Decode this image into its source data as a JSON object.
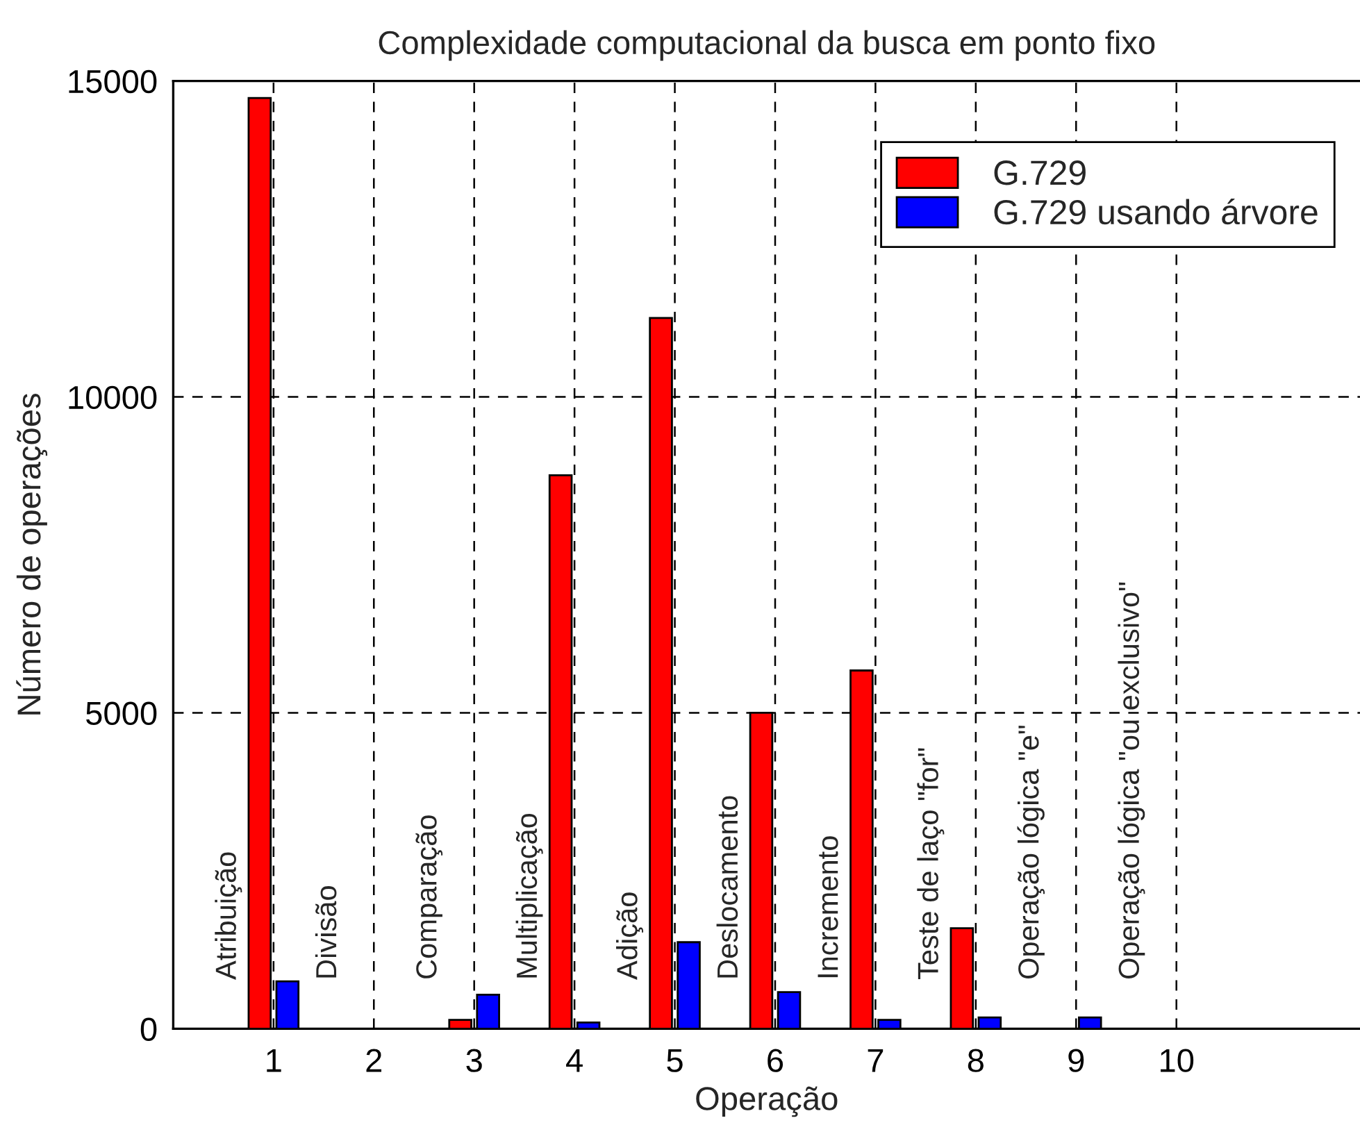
{
  "chart_data": {
    "type": "bar",
    "title": "Complexidade computacional da busca em ponto fixo",
    "xlabel": "Operação",
    "ylabel": "Número de operações",
    "categories": [
      "1",
      "2",
      "3",
      "4",
      "5",
      "6",
      "7",
      "8",
      "9",
      "10"
    ],
    "series": [
      {
        "name": "G.729",
        "color": "#ff0000",
        "values": [
          14730,
          null,
          140,
          8760,
          11250,
          5000,
          5670,
          1590,
          null,
          null
        ]
      },
      {
        "name": "G.729 usando árvore",
        "color": "#0000ff",
        "values": [
          750,
          null,
          540,
          100,
          1370,
          580,
          140,
          180,
          180,
          null
        ]
      }
    ],
    "ylim": [
      0,
      15000
    ],
    "yticks": [
      0,
      5000,
      10000,
      15000
    ],
    "grid": true,
    "legend": "top right",
    "annotations": [
      "Atribuição",
      "Divisão",
      "Comparação",
      "Multiplicação",
      "Adição",
      "Deslocamento",
      "Incremento",
      "Teste de laço \"for\"",
      "Operação lógica \"e\"",
      "Operação lógica \"ou exclusivo\""
    ]
  }
}
